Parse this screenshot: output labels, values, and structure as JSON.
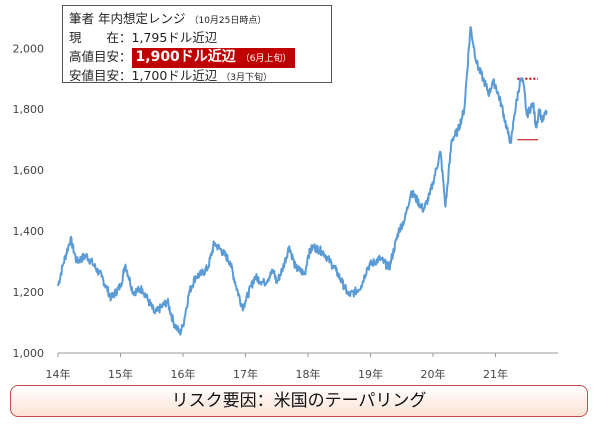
{
  "infobox": {
    "title": "筆者 年内想定レンジ",
    "title_note": "（10月25日時点）",
    "current_label": "現　　在：",
    "current_value": "1,795ドル近辺",
    "high_label": "高値目安：",
    "high_value": "1,900ドル近辺",
    "high_note": "（6月上旬）",
    "low_label": "安値目安：",
    "low_value": "1,700ドル近辺",
    "low_note": "（3月下旬）"
  },
  "risk_banner": "リスク要因：米国のテーパリング",
  "chart_data": {
    "type": "line",
    "x_ticks": [
      "14年",
      "15年",
      "16年",
      "17年",
      "18年",
      "19年",
      "20年",
      "21年"
    ],
    "y_ticks": [
      "1,000",
      "1,200",
      "1,400",
      "1,600",
      "1,800",
      "2,000"
    ],
    "ylim": [
      1000,
      2060
    ],
    "xlim": [
      2014.0,
      2022.0
    ],
    "grid": false,
    "series": [
      {
        "color": "#5b9bd5",
        "points": [
          [
            2014.0,
            1220
          ],
          [
            2014.08,
            1290
          ],
          [
            2014.2,
            1375
          ],
          [
            2014.3,
            1300
          ],
          [
            2014.45,
            1320
          ],
          [
            2014.55,
            1295
          ],
          [
            2014.7,
            1250
          ],
          [
            2014.85,
            1180
          ],
          [
            2015.0,
            1220
          ],
          [
            2015.08,
            1290
          ],
          [
            2015.2,
            1200
          ],
          [
            2015.35,
            1210
          ],
          [
            2015.45,
            1170
          ],
          [
            2015.55,
            1130
          ],
          [
            2015.65,
            1150
          ],
          [
            2015.75,
            1170
          ],
          [
            2015.85,
            1100
          ],
          [
            2015.95,
            1065
          ],
          [
            2016.0,
            1090
          ],
          [
            2016.1,
            1200
          ],
          [
            2016.2,
            1250
          ],
          [
            2016.3,
            1260
          ],
          [
            2016.4,
            1280
          ],
          [
            2016.5,
            1360
          ],
          [
            2016.6,
            1340
          ],
          [
            2016.75,
            1300
          ],
          [
            2016.85,
            1220
          ],
          [
            2016.95,
            1150
          ],
          [
            2017.0,
            1170
          ],
          [
            2017.15,
            1250
          ],
          [
            2017.3,
            1230
          ],
          [
            2017.45,
            1270
          ],
          [
            2017.5,
            1230
          ],
          [
            2017.6,
            1280
          ],
          [
            2017.7,
            1350
          ],
          [
            2017.8,
            1280
          ],
          [
            2017.95,
            1260
          ],
          [
            2018.0,
            1320
          ],
          [
            2018.08,
            1350
          ],
          [
            2018.25,
            1330
          ],
          [
            2018.35,
            1300
          ],
          [
            2018.45,
            1270
          ],
          [
            2018.55,
            1230
          ],
          [
            2018.65,
            1190
          ],
          [
            2018.75,
            1200
          ],
          [
            2018.85,
            1220
          ],
          [
            2018.95,
            1280
          ],
          [
            2019.0,
            1290
          ],
          [
            2019.15,
            1310
          ],
          [
            2019.3,
            1280
          ],
          [
            2019.45,
            1400
          ],
          [
            2019.55,
            1440
          ],
          [
            2019.65,
            1530
          ],
          [
            2019.75,
            1500
          ],
          [
            2019.85,
            1470
          ],
          [
            2019.95,
            1520
          ],
          [
            2020.0,
            1560
          ],
          [
            2020.12,
            1660
          ],
          [
            2020.2,
            1480
          ],
          [
            2020.3,
            1700
          ],
          [
            2020.4,
            1730
          ],
          [
            2020.5,
            1800
          ],
          [
            2020.6,
            2070
          ],
          [
            2020.7,
            1950
          ],
          [
            2020.8,
            1900
          ],
          [
            2020.9,
            1850
          ],
          [
            2020.95,
            1890
          ],
          [
            2021.0,
            1880
          ],
          [
            2021.1,
            1810
          ],
          [
            2021.2,
            1720
          ],
          [
            2021.25,
            1690
          ],
          [
            2021.3,
            1780
          ],
          [
            2021.4,
            1900
          ],
          [
            2021.45,
            1880
          ],
          [
            2021.5,
            1780
          ],
          [
            2021.6,
            1820
          ],
          [
            2021.65,
            1740
          ],
          [
            2021.7,
            1800
          ],
          [
            2021.75,
            1760
          ],
          [
            2021.82,
            1795
          ]
        ]
      }
    ],
    "annotations": {
      "high_line": {
        "value": 1900,
        "x_range": [
          2021.35,
          2022.0
        ],
        "style": "dotted",
        "color": "#c00000"
      },
      "low_line": {
        "value": 1700,
        "x_range": [
          2021.35,
          2022.0
        ],
        "style": "solid",
        "color": "#c00000"
      }
    }
  }
}
